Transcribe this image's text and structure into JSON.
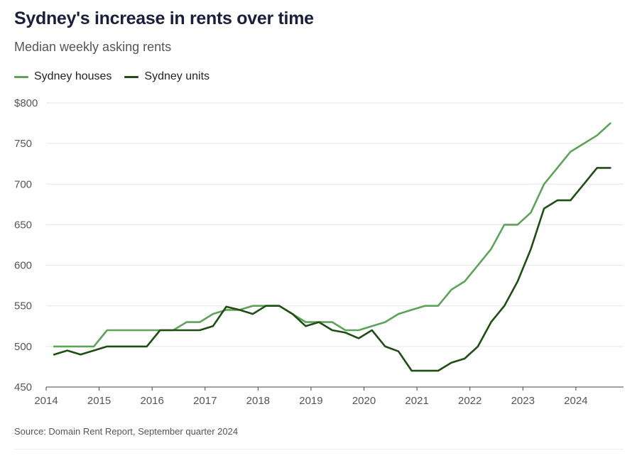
{
  "header": {
    "title": "Sydney's increase in rents over time",
    "subtitle": "Median weekly asking rents"
  },
  "footer": {
    "source": "Source: Domain Rent Report, September quarter 2024"
  },
  "colors": {
    "houses": "#5fa25a",
    "units": "#1f4d14",
    "grid": "#e6e6e6",
    "axis": "#444444"
  },
  "chart_data": {
    "type": "line",
    "title": "Sydney's increase in rents over time",
    "subtitle": "Median weekly asking rents",
    "xlabel": "",
    "ylabel": "",
    "xlim": [
      2014,
      2024.9
    ],
    "ylim": [
      450,
      800
    ],
    "xticks": [
      2014,
      2015,
      2016,
      2017,
      2018,
      2019,
      2020,
      2021,
      2022,
      2023,
      2024
    ],
    "yticks": [
      {
        "value": 450,
        "label": "450"
      },
      {
        "value": 500,
        "label": "500"
      },
      {
        "value": 550,
        "label": "550"
      },
      {
        "value": 600,
        "label": "600"
      },
      {
        "value": 650,
        "label": "650"
      },
      {
        "value": 700,
        "label": "700"
      },
      {
        "value": 750,
        "label": "750"
      },
      {
        "value": 800,
        "label": "$800"
      }
    ],
    "grid": true,
    "legend_position": "top-left",
    "x": [
      2014.15,
      2014.4,
      2014.65,
      2014.9,
      2015.15,
      2015.4,
      2015.65,
      2015.9,
      2016.15,
      2016.4,
      2016.65,
      2016.9,
      2017.15,
      2017.4,
      2017.65,
      2017.9,
      2018.15,
      2018.4,
      2018.65,
      2018.9,
      2019.15,
      2019.4,
      2019.65,
      2019.9,
      2020.15,
      2020.4,
      2020.65,
      2020.9,
      2021.15,
      2021.4,
      2021.65,
      2021.9,
      2022.15,
      2022.4,
      2022.65,
      2022.9,
      2023.15,
      2023.4,
      2023.65,
      2023.9,
      2024.15,
      2024.4,
      2024.65
    ],
    "series": [
      {
        "name": "Sydney houses",
        "values": [
          500,
          500,
          500,
          500,
          520,
          520,
          520,
          520,
          520,
          520,
          530,
          530,
          540,
          545,
          545,
          550,
          550,
          550,
          540,
          530,
          530,
          530,
          520,
          520,
          525,
          530,
          540,
          545,
          550,
          550,
          570,
          580,
          600,
          620,
          650,
          650,
          665,
          700,
          720,
          740,
          750,
          760,
          775
        ]
      },
      {
        "name": "Sydney units",
        "values": [
          490,
          495,
          490,
          495,
          500,
          500,
          500,
          500,
          520,
          520,
          520,
          520,
          525,
          549,
          545,
          540,
          550,
          550,
          540,
          525,
          530,
          520,
          517,
          510,
          520,
          500,
          494,
          470,
          470,
          470,
          480,
          485,
          500,
          530,
          550,
          580,
          620,
          670,
          680,
          680,
          700,
          720,
          720
        ]
      }
    ]
  }
}
